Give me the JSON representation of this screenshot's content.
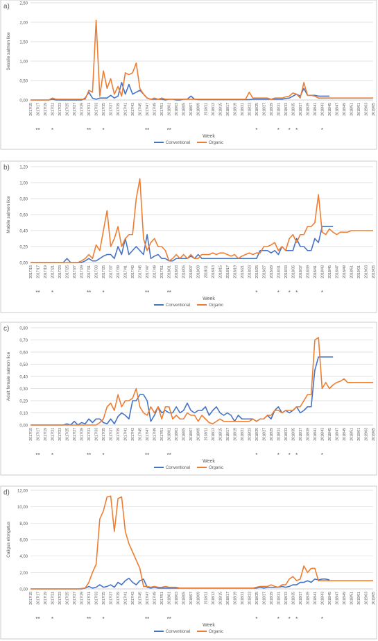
{
  "colors": {
    "conventional": "#4472C4",
    "organic": "#ED7D31",
    "grid": "#D9D9D9",
    "axis": "#BFBFBF",
    "text": "#595959"
  },
  "weeks": [
    "2017/15",
    "2017/16",
    "2017/17",
    "2017/18",
    "2017/19",
    "2017/20",
    "2017/21",
    "2017/22",
    "2017/23",
    "2017/24",
    "2017/25",
    "2017/26",
    "2017/27",
    "2017/28",
    "2017/29",
    "2017/30",
    "2017/31",
    "2017/32",
    "2017/33",
    "2017/34",
    "2017/35",
    "2017/36",
    "2017/37",
    "2017/38",
    "2017/39",
    "2017/40",
    "2017/41",
    "2017/42",
    "2017/43",
    "2017/44",
    "2017/45",
    "2017/46",
    "2017/47",
    "2017/48",
    "2017/49",
    "2017/50",
    "2017/51",
    "2017/52",
    "2018/01",
    "2018/02",
    "2018/03",
    "2018/04",
    "2018/05",
    "2018/06",
    "2018/07",
    "2018/08",
    "2018/09",
    "2018/10",
    "2018/11",
    "2018/12",
    "2018/13",
    "2018/14",
    "2018/15",
    "2018/16",
    "2018/17",
    "2018/18",
    "2018/19",
    "2018/20",
    "2018/21",
    "2018/22",
    "2018/23",
    "2018/24",
    "2018/25",
    "2018/26",
    "2018/27",
    "2018/28",
    "2018/29",
    "2018/30",
    "2018/31",
    "2018/32",
    "2018/33",
    "2018/34",
    "2018/35",
    "2018/36",
    "2018/37",
    "2018/38",
    "2018/39",
    "2018/40",
    "2018/41",
    "2018/42",
    "2018/43",
    "2018/44",
    "2018/45",
    "2018/46",
    "2018/47",
    "2018/48",
    "2018/49",
    "2018/50",
    "2018/51",
    "2018/52",
    "2019/01",
    "2019/02",
    "2019/03",
    "2019/04",
    "2019/05"
  ],
  "tick_labels": [
    "2017/15",
    "2017/17",
    "2017/19",
    "2017/21",
    "2017/23",
    "2017/25",
    "2017/27",
    "2017/29",
    "2017/31",
    "2017/33",
    "2017/35",
    "2017/37",
    "2017/39",
    "2017/41",
    "2017/43",
    "2017/45",
    "2017/47",
    "2017/49",
    "2017/51",
    "2018/01",
    "2018/03",
    "2018/05",
    "2018/07",
    "2018/09",
    "2018/11",
    "2018/13",
    "2018/15",
    "2018/17",
    "2018/19",
    "2018/21",
    "2018/23",
    "2018/25",
    "2018/27",
    "2018/29",
    "2018/31",
    "2018/33",
    "2018/35",
    "2018/37",
    "2018/39",
    "2018/41",
    "2018/43",
    "2018/45",
    "2018/47",
    "2018/49",
    "2018/51",
    "2019/01",
    "2019/03",
    "2019/05"
  ],
  "star_marks": [
    {
      "week": "2017/17",
      "text": "**"
    },
    {
      "week": "2017/21",
      "text": "*"
    },
    {
      "week": "2017/31",
      "text": "**"
    },
    {
      "week": "2017/35",
      "text": "*"
    },
    {
      "week": "2017/47",
      "text": "**"
    },
    {
      "week": "2018/01",
      "text": "**"
    },
    {
      "week": "2018/25",
      "text": "*"
    },
    {
      "week": "2018/31",
      "text": "*"
    },
    {
      "week": "2018/34",
      "text": "*"
    },
    {
      "week": "2018/36",
      "text": "*"
    },
    {
      "week": "2018/43",
      "text": "*"
    }
  ],
  "legend": {
    "conventional": "Conventional",
    "organic": "Organic"
  },
  "chart_data": [
    {
      "type": "line",
      "panel_label": "a)",
      "xlabel": "Week",
      "ylabel": "Sessile salmon lice",
      "ylim": [
        0,
        2.5
      ],
      "yticks": [
        "0,00",
        "0,50",
        "1,00",
        "1,50",
        "2,00",
        "2,50"
      ],
      "series": [
        {
          "name": "Conventional",
          "color": "#4472C4",
          "values": [
            0,
            0,
            0,
            0,
            0,
            0,
            0.02,
            0,
            0,
            0,
            0,
            0,
            0,
            0,
            0,
            0.05,
            0.2,
            0.05,
            0.02,
            0.05,
            0.05,
            0.05,
            0.12,
            0.05,
            0.1,
            0.45,
            0.15,
            0.4,
            0.15,
            0.2,
            0.25,
            0.15,
            0.05,
            0.02,
            0.02,
            0.02,
            0.02,
            0,
            0.02,
            0.02,
            0,
            0,
            0.02,
            0.02,
            0.1,
            0.02,
            0.01,
            0.01,
            0.01,
            0.01,
            0.01,
            0.01,
            0.01,
            0.01,
            0.01,
            0.01,
            0.01,
            0.01,
            0.01,
            0.01,
            0.01,
            0.02,
            0.02,
            0.02,
            0.02,
            0.02,
            0.02,
            0.02,
            0.02,
            0.02,
            0.04,
            0.05,
            0.1,
            0.15,
            0.1,
            0.3,
            0.12,
            0.12,
            0.12,
            0.1,
            0.1,
            0.1,
            0.1,
            null,
            null,
            null,
            null,
            null,
            null,
            null,
            null,
            null,
            null,
            null,
            null
          ]
        },
        {
          "name": "Organic",
          "color": "#ED7D31",
          "values": [
            0,
            0,
            0,
            0,
            0,
            0,
            0.05,
            0.02,
            0.02,
            0.02,
            0.02,
            0.02,
            0.02,
            0.02,
            0.02,
            0.02,
            0.25,
            0.2,
            2.05,
            0.1,
            0.75,
            0.3,
            0.55,
            0.15,
            0.35,
            0.1,
            0.7,
            0.65,
            0.7,
            0.95,
            0.3,
            0.15,
            0.05,
            0.02,
            0.05,
            0.02,
            0.05,
            0.02,
            0.02,
            0.02,
            0.02,
            0.02,
            0.02,
            0.02,
            0.02,
            0.02,
            0.02,
            0.02,
            0.02,
            0.02,
            0.02,
            0.02,
            0.02,
            0.02,
            0.02,
            0.02,
            0.02,
            0.02,
            0.02,
            0.02,
            0.2,
            0.05,
            0.05,
            0.05,
            0.05,
            0.05,
            0.02,
            0.05,
            0.05,
            0.05,
            0.08,
            0.1,
            0.18,
            0.15,
            0.05,
            0.45,
            0.12,
            0.12,
            0.1,
            0.05,
            0.05,
            0.05,
            0.05,
            0.05,
            0.05,
            0.05,
            0.05,
            0.05,
            0.05,
            0.05,
            0.05,
            0.05,
            0.05,
            0.05,
            0.05
          ]
        }
      ]
    },
    {
      "type": "line",
      "panel_label": "b)",
      "xlabel": "Week",
      "ylabel": "Mobile salmon lice",
      "ylim": [
        0,
        1.2
      ],
      "yticks": [
        "0,00",
        "0,20",
        "0,40",
        "0,60",
        "0,80",
        "1,00",
        "1,20"
      ],
      "series": [
        {
          "name": "Conventional",
          "color": "#4472C4",
          "values": [
            0,
            0,
            0,
            0,
            0,
            0,
            0,
            0,
            0,
            0,
            0.05,
            0,
            0,
            0,
            0,
            0.02,
            0.05,
            0.02,
            0.02,
            0.05,
            0.08,
            0.1,
            0.1,
            0.05,
            0.2,
            0.1,
            0.3,
            0.1,
            0.15,
            0.2,
            0.15,
            0.1,
            0.35,
            0.05,
            0.08,
            0.1,
            0.05,
            0.05,
            0.02,
            0.02,
            0.05,
            0.05,
            0.05,
            0.05,
            0.08,
            0.05,
            0.1,
            0.05,
            0.05,
            0.05,
            0.05,
            0.05,
            0.05,
            0.05,
            0.05,
            0.05,
            0.05,
            0.05,
            0.05,
            0.05,
            0.05,
            0.05,
            0.05,
            0.15,
            0.15,
            0.15,
            0.12,
            0.15,
            0.1,
            0.2,
            0.15,
            0.15,
            0.15,
            0.3,
            0.2,
            0.2,
            0.15,
            0.15,
            0.3,
            0.25,
            0.45,
            0.45,
            0.45,
            0.45,
            null,
            null,
            null,
            null,
            null,
            null,
            null,
            null,
            null,
            null,
            null
          ]
        },
        {
          "name": "Organic",
          "color": "#ED7D31",
          "values": [
            0,
            0,
            0,
            0,
            0,
            0,
            0,
            0,
            0,
            0,
            0,
            0,
            0,
            0,
            0.02,
            0.05,
            0.1,
            0.05,
            0.22,
            0.15,
            0.4,
            0.65,
            0.2,
            0.3,
            0.45,
            0.2,
            0.3,
            0.35,
            0.35,
            0.8,
            1.05,
            0.3,
            0.15,
            0.25,
            0.3,
            0.2,
            0.2,
            0.15,
            0.02,
            0.05,
            0.1,
            0.05,
            0.1,
            0.05,
            0.1,
            0.05,
            0.05,
            0.1,
            0.1,
            0.1,
            0.12,
            0.1,
            0.12,
            0.12,
            0.1,
            0.08,
            0.1,
            0.05,
            0.08,
            0.1,
            0.12,
            0.1,
            0.12,
            0.12,
            0.2,
            0.2,
            0.22,
            0.25,
            0.15,
            0.2,
            0.15,
            0.3,
            0.35,
            0.25,
            0.35,
            0.35,
            0.45,
            0.45,
            0.5,
            0.85,
            0.38,
            0.35,
            0.42,
            0.38,
            0.35,
            0.38,
            0.38,
            0.38,
            0.4,
            0.4,
            0.4,
            0.4,
            0.4,
            0.4,
            0.4
          ]
        }
      ]
    },
    {
      "type": "line",
      "panel_label": "c)",
      "xlabel": "Week",
      "ylabel": "Adult female salmon lice",
      "ylim": [
        0,
        0.8
      ],
      "yticks": [
        "0,00",
        "0,10",
        "0,20",
        "0,30",
        "0,40",
        "0,50",
        "0,60",
        "0,70",
        "0,80"
      ],
      "series": [
        {
          "name": "Conventional",
          "color": "#4472C4",
          "values": [
            0,
            0,
            0,
            0,
            0,
            0,
            0,
            0,
            0,
            0,
            0.01,
            0,
            0.03,
            0,
            0.02,
            0.01,
            0.05,
            0.02,
            0.05,
            0.05,
            0.02,
            0.01,
            0.05,
            0.01,
            0.07,
            0.1,
            0.08,
            0.05,
            0.2,
            0.2,
            0.25,
            0.25,
            0.2,
            0.03,
            0.08,
            0.15,
            0.1,
            0.12,
            0.1,
            0.1,
            0.15,
            0.1,
            0.12,
            0.18,
            0.12,
            0.1,
            0.12,
            0.12,
            0.15,
            0.08,
            0.12,
            0.15,
            0.1,
            0.08,
            0.1,
            0.08,
            0.03,
            0.08,
            0.05,
            0.05,
            0.05,
            0.05,
            0.03,
            0.05,
            0.05,
            0.08,
            0.05,
            0.12,
            0.15,
            0.1,
            0.12,
            0.1,
            0.12,
            0.15,
            0.1,
            0.12,
            0.15,
            0.15,
            0.45,
            0.56,
            0.56,
            0.56,
            0.56,
            0.56,
            null,
            null,
            null,
            null,
            null,
            null,
            null,
            null,
            null,
            null,
            null
          ]
        },
        {
          "name": "Organic",
          "color": "#ED7D31",
          "values": [
            0,
            0,
            0,
            0,
            0,
            0,
            0,
            0,
            0,
            0,
            0,
            0,
            0,
            0,
            0,
            0,
            0,
            0,
            0,
            0.02,
            0.05,
            0.15,
            0.18,
            0.12,
            0.25,
            0.15,
            0.2,
            0.2,
            0.22,
            0.3,
            0.15,
            0.1,
            0.08,
            0.15,
            0.1,
            0.15,
            0.05,
            0.15,
            0.15,
            0.05,
            0.08,
            0.05,
            0.05,
            0.1,
            0.08,
            0.08,
            0.03,
            0.08,
            0.05,
            0.02,
            0.01,
            0.03,
            0.05,
            0.03,
            0.03,
            0.03,
            0.03,
            0.03,
            0.03,
            0.03,
            0.03,
            0.05,
            0.03,
            0.05,
            0.05,
            0.08,
            0.08,
            0.12,
            0.12,
            0.1,
            0.12,
            0.12,
            0.12,
            0.15,
            0.15,
            0.2,
            0.25,
            0.25,
            0.7,
            0.72,
            0.3,
            0.35,
            0.3,
            0.33,
            0.35,
            0.36,
            0.38,
            0.35,
            0.35,
            0.35,
            0.35,
            0.35,
            0.35,
            0.35,
            0.35
          ]
        }
      ]
    },
    {
      "type": "line",
      "panel_label": "d)",
      "xlabel": "Week",
      "ylabel": "Caligus elongatus",
      "ylim": [
        0,
        12
      ],
      "yticks": [
        "0,00",
        "2,00",
        "4,00",
        "6,00",
        "8,00",
        "10,00",
        "12,00"
      ],
      "series": [
        {
          "name": "Conventional",
          "color": "#4472C4",
          "values": [
            0,
            0,
            0,
            0,
            0,
            0,
            0,
            0,
            0,
            0,
            0,
            0,
            0,
            0,
            0,
            0.1,
            0.3,
            0.1,
            0.2,
            0.5,
            0.2,
            0.3,
            0.5,
            0.2,
            0.8,
            0.5,
            1,
            1.3,
            0.8,
            0.5,
            1,
            1.2,
            0.2,
            0.1,
            0.2,
            0.1,
            0.1,
            0.1,
            0.1,
            0.1,
            0.1,
            0.1,
            0.1,
            0.1,
            0.1,
            0.1,
            0.1,
            0.1,
            0.1,
            0.1,
            0.1,
            0.1,
            0.1,
            0.1,
            0.1,
            0.1,
            0.1,
            0.1,
            0.1,
            0.1,
            0.1,
            0.1,
            0.1,
            0.2,
            0.1,
            0.2,
            0.2,
            0.2,
            0.2,
            0.3,
            0.2,
            0.3,
            0.5,
            0.5,
            0.8,
            0.8,
            1,
            0.8,
            1.2,
            1.1,
            1.2,
            1.2,
            1.1,
            null,
            null,
            null,
            null,
            null,
            null,
            null,
            null,
            null,
            null,
            null,
            null
          ]
        },
        {
          "name": "Organic",
          "color": "#ED7D31",
          "values": [
            0,
            0,
            0,
            0,
            0,
            0,
            0,
            0,
            0,
            0,
            0,
            0,
            0,
            0,
            0.05,
            0.1,
            0.8,
            2,
            3,
            8.5,
            9.5,
            11.2,
            11.3,
            7,
            11,
            11.2,
            7,
            5.5,
            4.5,
            3.5,
            2.5,
            0.3,
            0.3,
            0.2,
            0.3,
            0.2,
            0.2,
            0.3,
            0.2,
            0.2,
            0.2,
            0.1,
            0.1,
            0.1,
            0.1,
            0.1,
            0.1,
            0.1,
            0.1,
            0.1,
            0.1,
            0.1,
            0.1,
            0.1,
            0.1,
            0.1,
            0.1,
            0.1,
            0.1,
            0.1,
            0.1,
            0.1,
            0.2,
            0.3,
            0.3,
            0.3,
            0.5,
            0.3,
            0.2,
            0.5,
            0.5,
            1.2,
            1.5,
            1,
            1.2,
            2.8,
            2,
            2.5,
            2.5,
            1,
            1,
            1,
            1,
            1,
            1,
            1,
            1,
            1,
            1,
            1,
            1,
            1,
            1,
            1,
            1
          ]
        }
      ]
    }
  ]
}
